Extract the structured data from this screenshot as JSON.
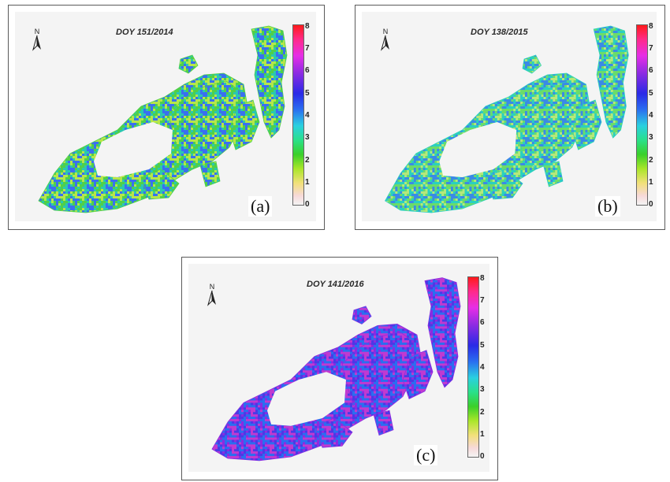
{
  "panels": [
    {
      "doy": "DOY 151/2014",
      "label": "(a)",
      "dominant_colors": [
        "#2ac8b0",
        "#4fd04a",
        "#3a6ff0",
        "#b6e64a"
      ]
    },
    {
      "doy": "DOY 138/2015",
      "label": "(b)",
      "dominant_colors": [
        "#6adc6a",
        "#2ad0c0",
        "#b6e87a",
        "#3a8ae6"
      ]
    },
    {
      "doy": "DOY 141/2016",
      "label": "(c)",
      "dominant_colors": [
        "#4a3ae6",
        "#8a2be2",
        "#2a6ef0",
        "#c03ad0"
      ]
    }
  ],
  "north_label": "N",
  "colorbar": {
    "ticks": [
      "8",
      "7",
      "6",
      "5",
      "4",
      "3",
      "2",
      "1",
      "0"
    ]
  }
}
